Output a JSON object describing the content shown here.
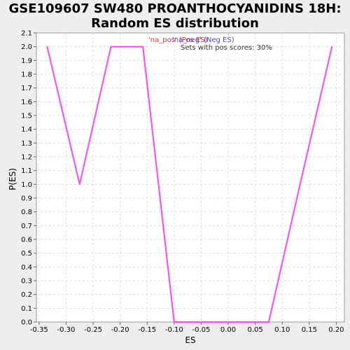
{
  "chart_data": {
    "type": "line",
    "title_line1": "GSE109607 SW480 PROANTHOCYANIDINS 18H:",
    "title_line2": "Random ES distribution",
    "xlabel": "ES",
    "ylabel": "P(ES)",
    "xlim": [
      -0.355,
      0.215
    ],
    "ylim": [
      0,
      2.1
    ],
    "x_ticks": [
      "-0.35",
      "-0.30",
      "-0.25",
      "-0.20",
      "-0.15",
      "-0.10",
      "-0.05",
      "0.00",
      "0.05",
      "0.10",
      "0.15",
      "0.20"
    ],
    "y_ticks": [
      "0.0",
      "0.1",
      "0.2",
      "0.3",
      "0.4",
      "0.5",
      "0.6",
      "0.7",
      "0.8",
      "0.9",
      "1.0",
      "1.1",
      "1.2",
      "1.3",
      "1.4",
      "1.5",
      "1.6",
      "1.7",
      "1.8",
      "1.9",
      "2.0",
      "2.1"
    ],
    "grid": true,
    "series": [
      {
        "color": "#ff44ff",
        "x": [
          -0.335,
          -0.275,
          -0.217,
          -0.158,
          -0.1,
          -0.042,
          0.017,
          0.075,
          0.133,
          0.192
        ],
        "y": [
          2.0,
          1.0,
          2.0,
          2.0,
          0.0,
          0.0,
          0.0,
          0.0,
          1.0,
          2.0
        ]
      }
    ],
    "annotations": [
      {
        "text": "'na_pos' (Pos ES)",
        "color": "#dd3333"
      },
      {
        "text": "'na_neg' (Neg ES)",
        "color": "#4444cc"
      },
      {
        "text": "Sets with pos scores: 30%",
        "color": "#333333"
      }
    ]
  }
}
